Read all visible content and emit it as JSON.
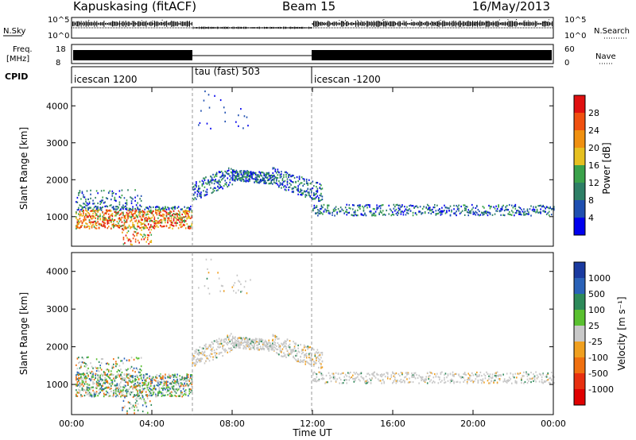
{
  "header": {
    "station": "Kapuskasing (fitACF)",
    "beam": "Beam 15",
    "date": "16/May/2013"
  },
  "strips": {
    "nsky_label": "N.Sky",
    "nsky_ticks": [
      "10^5",
      "10^0"
    ],
    "nsearch_label": "N.Search",
    "nsearch_ticks": [
      "10^5",
      "10^0"
    ],
    "freq_label_1": "Freq.",
    "freq_label_2": "[MHz]",
    "freq_ticks": [
      "18",
      "8"
    ],
    "nave_label": "Nave",
    "nave_ticks": [
      "60",
      "0"
    ],
    "cpid_label": "CPID",
    "cpid_segments": [
      {
        "label": "icescan 1200",
        "start": 0,
        "end": 6
      },
      {
        "label": "tau (fast) 503",
        "start": 6,
        "end": 12
      },
      {
        "label": "icescan -1200",
        "start": 12,
        "end": 24
      }
    ]
  },
  "chart_data": [
    {
      "type": "heatmap",
      "name": "power",
      "xlabel": "Time UT",
      "ylabel": "Slant Range [km]",
      "x_range": [
        0,
        24
      ],
      "y_range": [
        200,
        4500
      ],
      "yticks": [
        "1000",
        "2000",
        "3000",
        "4000"
      ],
      "colorbar_label": "Power [dB]",
      "colorbar_ticks": [
        "4",
        "8",
        "12",
        "16",
        "20",
        "24",
        "28"
      ],
      "colors": [
        "#0000ee",
        "#1f4fb0",
        "#2e7f66",
        "#3aa24a",
        "#e6c020",
        "#f09010",
        "#f05010",
        "#e01010"
      ]
    },
    {
      "type": "heatmap",
      "name": "velocity",
      "xlabel": "Time UT",
      "ylabel": "Slant Range [km]",
      "x_range": [
        0,
        24
      ],
      "y_range": [
        200,
        4500
      ],
      "yticks": [
        "1000",
        "2000",
        "3000",
        "4000"
      ],
      "xticks": [
        "00:00",
        "04:00",
        "08:00",
        "12:00",
        "16:00",
        "20:00",
        "00:00"
      ],
      "colorbar_label": "Velocity [m s⁻¹]",
      "colorbar_ticks": [
        "1000",
        "500",
        "100",
        "25",
        "-25",
        "-100",
        "-500",
        "-1000"
      ],
      "colors": [
        "#1a3aa0",
        "#2a62b8",
        "#2d8a5a",
        "#5ac030",
        "#c8c8c8",
        "#f0a020",
        "#f07010",
        "#e83010",
        "#e00000"
      ]
    }
  ]
}
